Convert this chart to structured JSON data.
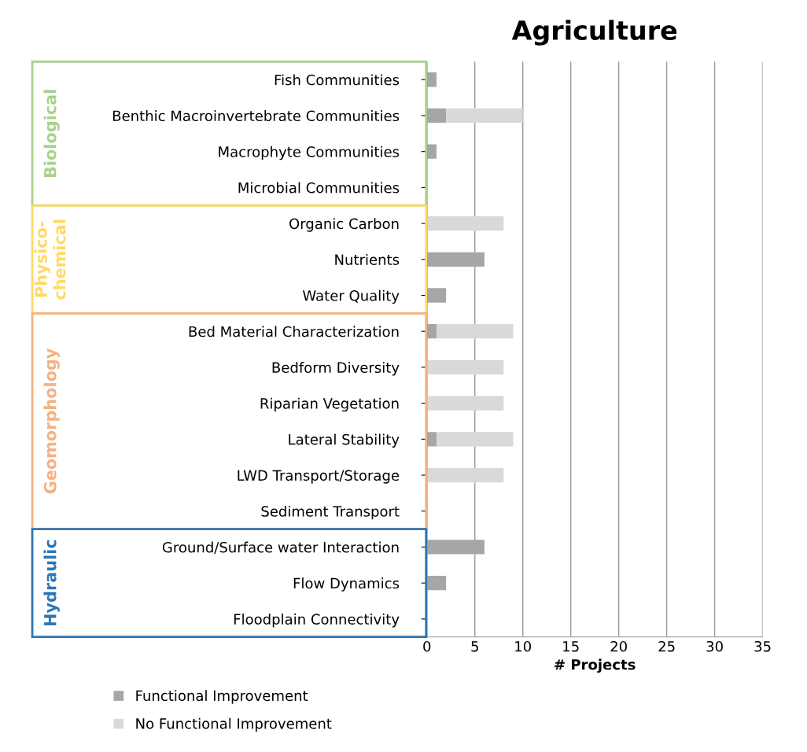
{
  "chart_data": {
    "type": "bar",
    "orientation": "horizontal",
    "stacked": true,
    "title": "Agriculture",
    "xlabel": "# Projects",
    "categories": [
      "Fish Communities",
      "Benthic Macroinvertebrate Communities",
      "Macrophyte Communities",
      "Microbial Communities",
      "Organic Carbon",
      "Nutrients",
      "Water Quality",
      "Bed Material Characterization",
      "Bedform Diversity",
      "Riparian Vegetation",
      "Lateral Stability",
      "LWD Transport/Storage",
      "Sediment Transport",
      "Ground/Surface water Interaction",
      "Flow Dynamics",
      "Floodplain Connectivity"
    ],
    "series": [
      {
        "name": "Functional Improvement",
        "color": "#a6a6a6",
        "values": [
          1,
          2,
          1,
          0,
          0,
          6,
          2,
          1,
          0,
          0,
          1,
          0,
          0,
          6,
          2,
          0
        ]
      },
      {
        "name": "No Functional Improvement",
        "color": "#d9d9d9",
        "values": [
          0,
          8,
          0,
          0,
          8,
          0,
          0,
          8,
          8,
          8,
          8,
          8,
          0,
          0,
          0,
          0
        ]
      }
    ],
    "xlim": [
      0,
      35
    ],
    "xticks": [
      0,
      5,
      10,
      15,
      20,
      25,
      30,
      35
    ],
    "grid": "x",
    "legend": "bottom left",
    "annotations": [
      "Biological",
      "Physico-\nchemical",
      "Geomorphology",
      "Hydraulic"
    ]
  }
}
